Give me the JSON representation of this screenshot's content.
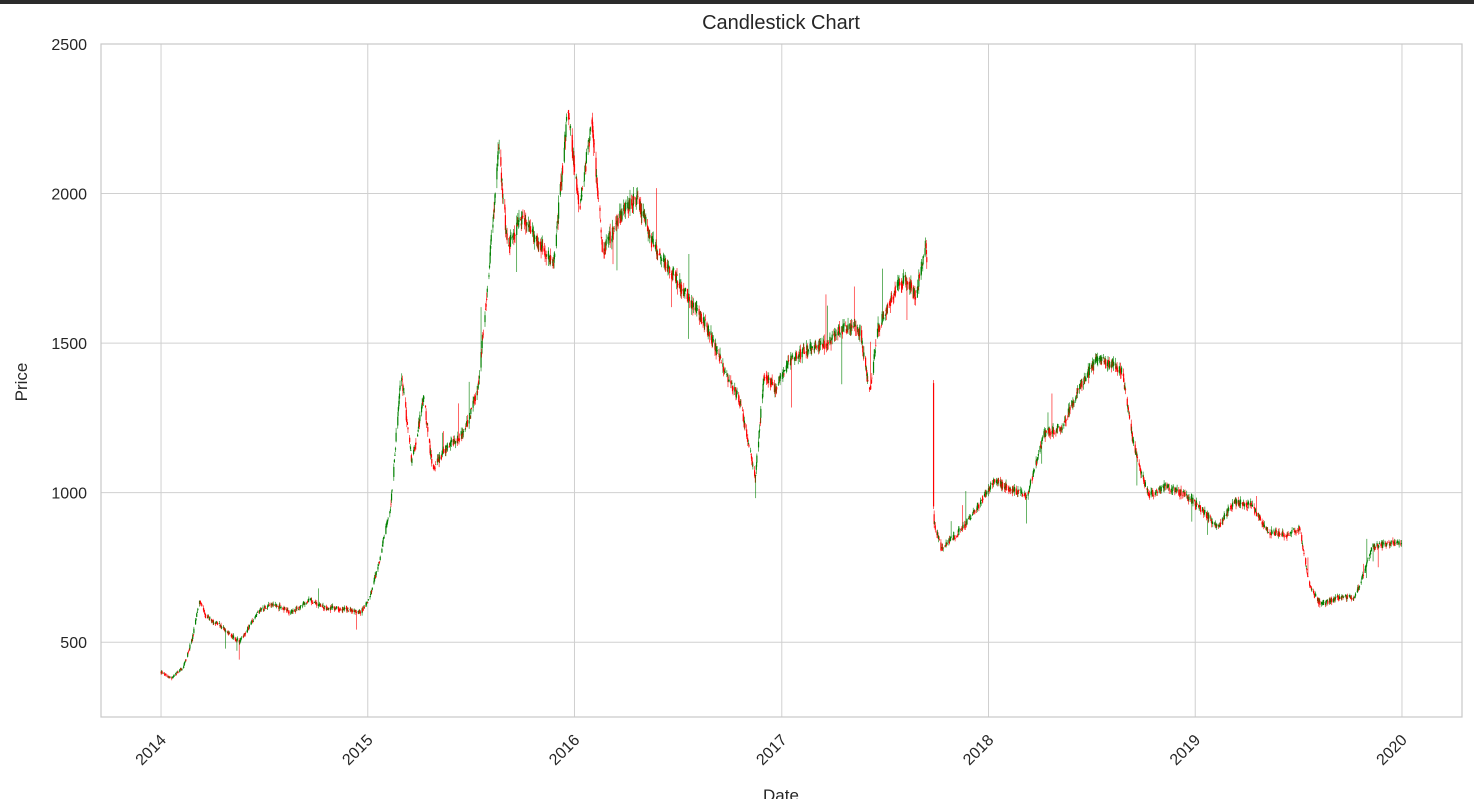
{
  "chart_data": {
    "type": "candlestick",
    "title": "Candlestick Chart",
    "xlabel": "Date",
    "ylabel": "Price",
    "xlim": [
      "2013-09-17",
      "2020-04-16"
    ],
    "ylim": [
      250,
      2500
    ],
    "xticks": [
      "2014",
      "2015",
      "2016",
      "2017",
      "2018",
      "2019",
      "2020"
    ],
    "yticks": [
      500,
      1000,
      1500,
      2000,
      2500
    ],
    "grid": true,
    "colors": {
      "up": "#008000",
      "down": "#ff0000",
      "grid": "#d0d0d0",
      "frame": "#c8c8c8"
    },
    "gap": [
      "2017-09-14",
      "2017-09-26"
    ],
    "trend": [
      [
        "2014-01-01",
        400
      ],
      [
        "2014-01-20",
        380
      ],
      [
        "2014-02-10",
        420
      ],
      [
        "2014-02-25",
        510
      ],
      [
        "2014-03-10",
        640
      ],
      [
        "2014-03-20",
        590
      ],
      [
        "2014-04-15",
        555
      ],
      [
        "2014-05-20",
        500
      ],
      [
        "2014-06-20",
        600
      ],
      [
        "2014-07-15",
        630
      ],
      [
        "2014-08-20",
        600
      ],
      [
        "2014-09-20",
        640
      ],
      [
        "2014-10-20",
        615
      ],
      [
        "2014-11-20",
        610
      ],
      [
        "2014-12-20",
        600
      ],
      [
        "2015-01-05",
        650
      ],
      [
        "2015-01-20",
        760
      ],
      [
        "2015-02-10",
        950
      ],
      [
        "2015-03-01",
        1400
      ],
      [
        "2015-03-20",
        1100
      ],
      [
        "2015-04-10",
        1320
      ],
      [
        "2015-04-25",
        1080
      ],
      [
        "2015-05-20",
        1150
      ],
      [
        "2015-06-20",
        1200
      ],
      [
        "2015-07-15",
        1350
      ],
      [
        "2015-08-01",
        1700
      ],
      [
        "2015-08-20",
        2150
      ],
      [
        "2015-09-05",
        1820
      ],
      [
        "2015-10-01",
        1920
      ],
      [
        "2015-11-01",
        1830
      ],
      [
        "2015-11-25",
        1760
      ],
      [
        "2015-12-20",
        2280
      ],
      [
        "2016-01-10",
        1950
      ],
      [
        "2016-02-01",
        2250
      ],
      [
        "2016-02-20",
        1800
      ],
      [
        "2016-03-20",
        1920
      ],
      [
        "2016-04-20",
        1990
      ],
      [
        "2016-05-20",
        1820
      ],
      [
        "2016-06-20",
        1740
      ],
      [
        "2016-07-20",
        1650
      ],
      [
        "2016-08-20",
        1560
      ],
      [
        "2016-09-20",
        1420
      ],
      [
        "2016-10-20",
        1300
      ],
      [
        "2016-11-15",
        1050
      ],
      [
        "2016-12-01",
        1400
      ],
      [
        "2016-12-20",
        1350
      ],
      [
        "2017-01-20",
        1450
      ],
      [
        "2017-02-20",
        1480
      ],
      [
        "2017-03-20",
        1500
      ],
      [
        "2017-04-20",
        1550
      ],
      [
        "2017-05-20",
        1540
      ],
      [
        "2017-06-05",
        1330
      ],
      [
        "2017-06-20",
        1550
      ],
      [
        "2017-07-20",
        1680
      ],
      [
        "2017-08-10",
        1720
      ],
      [
        "2017-08-25",
        1650
      ],
      [
        "2017-09-13",
        1830
      ],
      [
        "2017-09-27",
        900
      ],
      [
        "2017-10-10",
        810
      ],
      [
        "2017-11-10",
        870
      ],
      [
        "2017-12-10",
        940
      ],
      [
        "2018-01-10",
        1040
      ],
      [
        "2018-02-10",
        1010
      ],
      [
        "2018-03-10",
        990
      ],
      [
        "2018-04-10",
        1200
      ],
      [
        "2018-05-10",
        1220
      ],
      [
        "2018-06-10",
        1350
      ],
      [
        "2018-07-10",
        1440
      ],
      [
        "2018-08-10",
        1430
      ],
      [
        "2018-08-25",
        1400
      ],
      [
        "2018-09-15",
        1150
      ],
      [
        "2018-10-10",
        990
      ],
      [
        "2018-11-10",
        1020
      ],
      [
        "2018-12-10",
        1000
      ],
      [
        "2019-01-10",
        950
      ],
      [
        "2019-02-10",
        880
      ],
      [
        "2019-03-10",
        970
      ],
      [
        "2019-04-10",
        960
      ],
      [
        "2019-05-10",
        870
      ],
      [
        "2019-06-10",
        860
      ],
      [
        "2019-07-05",
        880
      ],
      [
        "2019-07-20",
        700
      ],
      [
        "2019-08-10",
        625
      ],
      [
        "2019-09-10",
        650
      ],
      [
        "2019-10-10",
        650
      ],
      [
        "2019-10-25",
        730
      ],
      [
        "2019-11-10",
        820
      ],
      [
        "2019-12-10",
        830
      ],
      [
        "2019-12-31",
        830
      ]
    ]
  }
}
